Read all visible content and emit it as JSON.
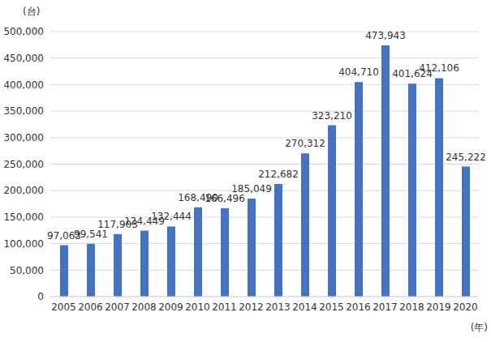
{
  "chart_data": {
    "type": "bar",
    "ylabel": "(台)",
    "xlabel": "(年)",
    "categories": [
      "2005",
      "2006",
      "2007",
      "2008",
      "2009",
      "2010",
      "2011",
      "2012",
      "2013",
      "2014",
      "2015",
      "2016",
      "2017",
      "2018",
      "2019",
      "2020"
    ],
    "values": [
      97063,
      99541,
      117903,
      124449,
      132444,
      168490,
      166496,
      185049,
      212682,
      270312,
      323210,
      404710,
      473943,
      401624,
      412106,
      245222
    ],
    "value_labels": [
      "97,063",
      "99,541",
      "117,903",
      "124,449",
      "132,444",
      "168,490",
      "166,496",
      "185,049",
      "212,682",
      "270,312",
      "323,210",
      "404,710",
      "473,943",
      "401,624",
      "412,106",
      "245,222"
    ],
    "color": "#4472c4",
    "ylim": [
      0,
      500000
    ],
    "yticks": [
      0,
      {
        "value": 50000,
        "label": "50,000"
      },
      {
        "value": 100000,
        "label": "100,000"
      },
      {
        "value": 150000,
        "label": "150,000"
      },
      {
        "value": 200000,
        "label": "200,000"
      },
      {
        "value": 250000,
        "label": "250,000"
      },
      {
        "value": 300000,
        "label": "300,000"
      },
      {
        "value": 350000,
        "label": "350,000"
      },
      {
        "value": 400000,
        "label": "400,000"
      },
      {
        "value": 450000,
        "label": "450,000"
      },
      {
        "value": 500000,
        "label": "500,000"
      }
    ],
    "grid": true,
    "data_labels": true
  }
}
